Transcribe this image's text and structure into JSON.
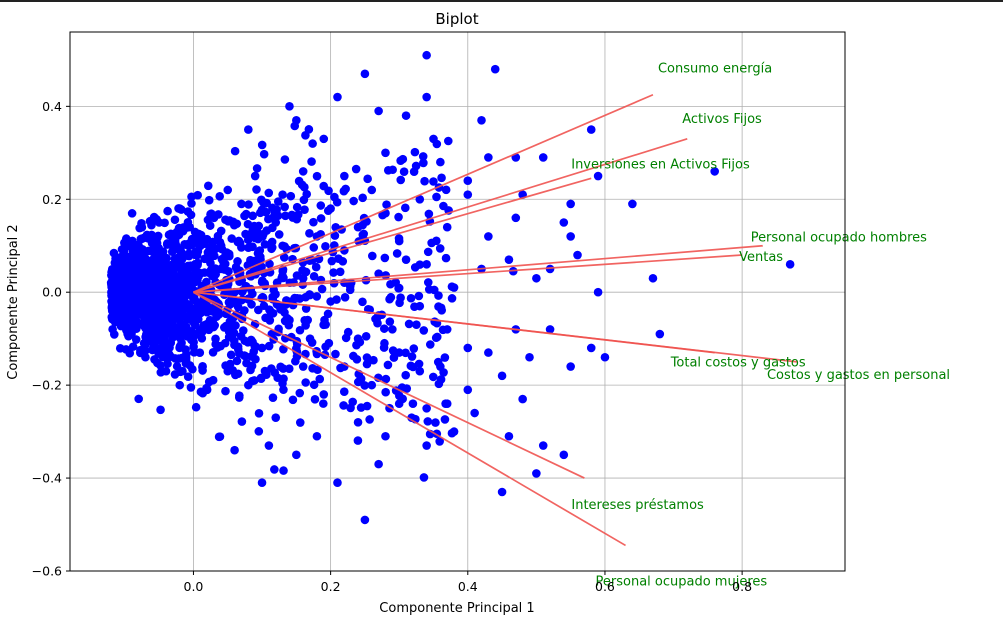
{
  "chart_data": {
    "type": "scatter",
    "title": "Biplot",
    "xlabel": "Componente Principal 1",
    "ylabel": "Componente Principal 2",
    "xlim": [
      -0.18,
      0.95
    ],
    "ylim": [
      -0.6,
      0.56
    ],
    "xticks": [
      0.0,
      0.2,
      0.4,
      0.6,
      0.8
    ],
    "xtick_labels": [
      "0.0",
      "0.2",
      "0.4",
      "0.6",
      "0.8"
    ],
    "yticks": [
      -0.6,
      -0.4,
      -0.2,
      0.0,
      0.2,
      0.4
    ],
    "ytick_labels": [
      "−0.6",
      "−0.4",
      "−0.2",
      "0.0",
      "0.2",
      "0.4"
    ],
    "grid": true,
    "colors": {
      "points": "#0000ff",
      "loadings": "#ef5350",
      "loading_labels": "#008000"
    },
    "points": [
      [
        0.34,
        0.51
      ],
      [
        0.25,
        0.47
      ],
      [
        0.44,
        0.48
      ],
      [
        0.34,
        0.42
      ],
      [
        0.27,
        0.39
      ],
      [
        0.21,
        0.42
      ],
      [
        0.14,
        0.4
      ],
      [
        0.15,
        0.37
      ],
      [
        0.08,
        0.35
      ],
      [
        0.31,
        0.38
      ],
      [
        0.42,
        0.37
      ],
      [
        0.58,
        0.35
      ],
      [
        0.35,
        0.33
      ],
      [
        0.28,
        0.3
      ],
      [
        0.36,
        0.28
      ],
      [
        0.47,
        0.29
      ],
      [
        0.51,
        0.29
      ],
      [
        0.59,
        0.25
      ],
      [
        0.76,
        0.26
      ],
      [
        0.43,
        0.29
      ],
      [
        0.19,
        0.33
      ],
      [
        0.16,
        0.26
      ],
      [
        0.4,
        0.24
      ],
      [
        0.4,
        0.21
      ],
      [
        0.48,
        0.21
      ],
      [
        0.55,
        0.19
      ],
      [
        0.64,
        0.19
      ],
      [
        0.33,
        0.2
      ],
      [
        0.26,
        0.22
      ],
      [
        0.22,
        0.25
      ],
      [
        0.47,
        0.16
      ],
      [
        0.54,
        0.15
      ],
      [
        0.55,
        0.12
      ],
      [
        0.56,
        0.08
      ],
      [
        0.43,
        0.12
      ],
      [
        0.37,
        0.14
      ],
      [
        0.3,
        0.11
      ],
      [
        0.46,
        0.07
      ],
      [
        0.52,
        0.05
      ],
      [
        0.5,
        0.03
      ],
      [
        0.42,
        0.05
      ],
      [
        0.87,
        0.06
      ],
      [
        0.67,
        0.03
      ],
      [
        0.59,
        0.0
      ],
      [
        0.52,
        -0.08
      ],
      [
        0.47,
        -0.08
      ],
      [
        0.43,
        -0.13
      ],
      [
        0.4,
        -0.12
      ],
      [
        0.37,
        -0.08
      ],
      [
        0.68,
        -0.09
      ],
      [
        0.6,
        -0.14
      ],
      [
        0.58,
        -0.12
      ],
      [
        0.55,
        -0.16
      ],
      [
        0.49,
        -0.14
      ],
      [
        0.45,
        -0.18
      ],
      [
        0.4,
        -0.21
      ],
      [
        0.37,
        -0.24
      ],
      [
        0.34,
        -0.25
      ],
      [
        0.32,
        -0.24
      ],
      [
        0.38,
        -0.3
      ],
      [
        0.46,
        -0.31
      ],
      [
        0.48,
        -0.23
      ],
      [
        0.51,
        -0.33
      ],
      [
        0.54,
        -0.35
      ],
      [
        0.5,
        -0.39
      ],
      [
        0.45,
        -0.43
      ],
      [
        0.34,
        -0.33
      ],
      [
        0.27,
        -0.37
      ],
      [
        0.21,
        -0.41
      ],
      [
        0.25,
        -0.49
      ],
      [
        0.1,
        -0.41
      ],
      [
        0.15,
        -0.35
      ],
      [
        0.28,
        -0.31
      ],
      [
        0.3,
        -0.24
      ],
      [
        0.24,
        -0.28
      ],
      [
        0.18,
        -0.31
      ],
      [
        0.11,
        -0.33
      ],
      [
        0.06,
        -0.34
      ],
      [
        0.12,
        -0.27
      ],
      [
        0.19,
        -0.22
      ],
      [
        0.26,
        -0.2
      ],
      [
        0.33,
        -0.17
      ],
      [
        0.3,
        -0.13
      ],
      [
        0.24,
        -0.1
      ],
      [
        0.27,
        -0.05
      ],
      [
        0.33,
        -0.03
      ],
      [
        0.38,
        0.01
      ],
      [
        0.34,
        0.06
      ],
      [
        0.27,
        0.04
      ],
      [
        0.22,
        0.09
      ],
      [
        0.28,
        0.17
      ],
      [
        0.2,
        0.18
      ],
      [
        0.13,
        0.21
      ],
      [
        0.07,
        0.19
      ],
      [
        0.03,
        0.16
      ],
      [
        0.09,
        0.25
      ],
      [
        0.05,
        0.22
      ],
      [
        0.18,
        0.12
      ],
      [
        0.13,
        0.1
      ],
      [
        0.09,
        0.06
      ],
      [
        0.16,
        0.03
      ],
      [
        0.2,
        -0.02
      ],
      [
        0.14,
        -0.06
      ],
      [
        0.1,
        -0.12
      ],
      [
        0.05,
        -0.17
      ],
      [
        0.02,
        -0.21
      ],
      [
        0.08,
        -0.2
      ],
      [
        0.16,
        -0.16
      ],
      [
        -0.02,
        -0.2
      ],
      [
        -0.04,
        -0.17
      ],
      [
        -0.07,
        -0.14
      ],
      [
        -0.05,
        0.15
      ],
      [
        -0.02,
        0.18
      ],
      [
        0.01,
        0.12
      ],
      [
        -0.1,
        -0.05
      ],
      [
        -0.12,
        0.02
      ],
      [
        -0.11,
        0.04
      ],
      [
        -0.09,
        -0.08
      ],
      [
        -0.06,
        0.09
      ],
      [
        -0.03,
        0.11
      ],
      [
        0.23,
        0.02
      ],
      [
        0.29,
        -0.08
      ],
      [
        0.36,
        -0.16
      ],
      [
        0.41,
        -0.26
      ],
      [
        0.22,
        -0.16
      ],
      [
        0.31,
        0.07
      ],
      [
        0.24,
        0.14
      ],
      [
        0.17,
        -0.1
      ],
      [
        0.12,
        0.15
      ],
      [
        0.07,
        -0.05
      ],
      [
        0.04,
        0.05
      ],
      [
        0.0,
        -0.09
      ],
      [
        -0.04,
        0.02
      ],
      [
        -0.08,
        0.07
      ],
      [
        -0.07,
        -0.02
      ],
      [
        -0.01,
        0.03
      ],
      [
        0.02,
        -0.03
      ],
      [
        0.06,
        0.0
      ]
    ],
    "loadings": [
      {
        "label": "Consumo energía",
        "x": 0.67,
        "y": 0.425
      },
      {
        "label": "Activos Fijos",
        "x": 0.72,
        "y": 0.33
      },
      {
        "label": "Inversiones en Activos Fijos",
        "x": 0.58,
        "y": 0.245
      },
      {
        "label": "Personal ocupado hombres",
        "x": 0.83,
        "y": 0.1
      },
      {
        "label": "Ventas",
        "x": 0.8,
        "y": 0.08
      },
      {
        "label": "Total costos y gastos",
        "x": 0.76,
        "y": -0.13
      },
      {
        "label": "Costos y gastos en personal",
        "x": 0.88,
        "y": -0.15
      },
      {
        "label": "Intereses préstamos",
        "x": 0.57,
        "y": -0.4
      },
      {
        "label": "Personal ocupado mujeres",
        "x": 0.63,
        "y": -0.545
      }
    ]
  }
}
